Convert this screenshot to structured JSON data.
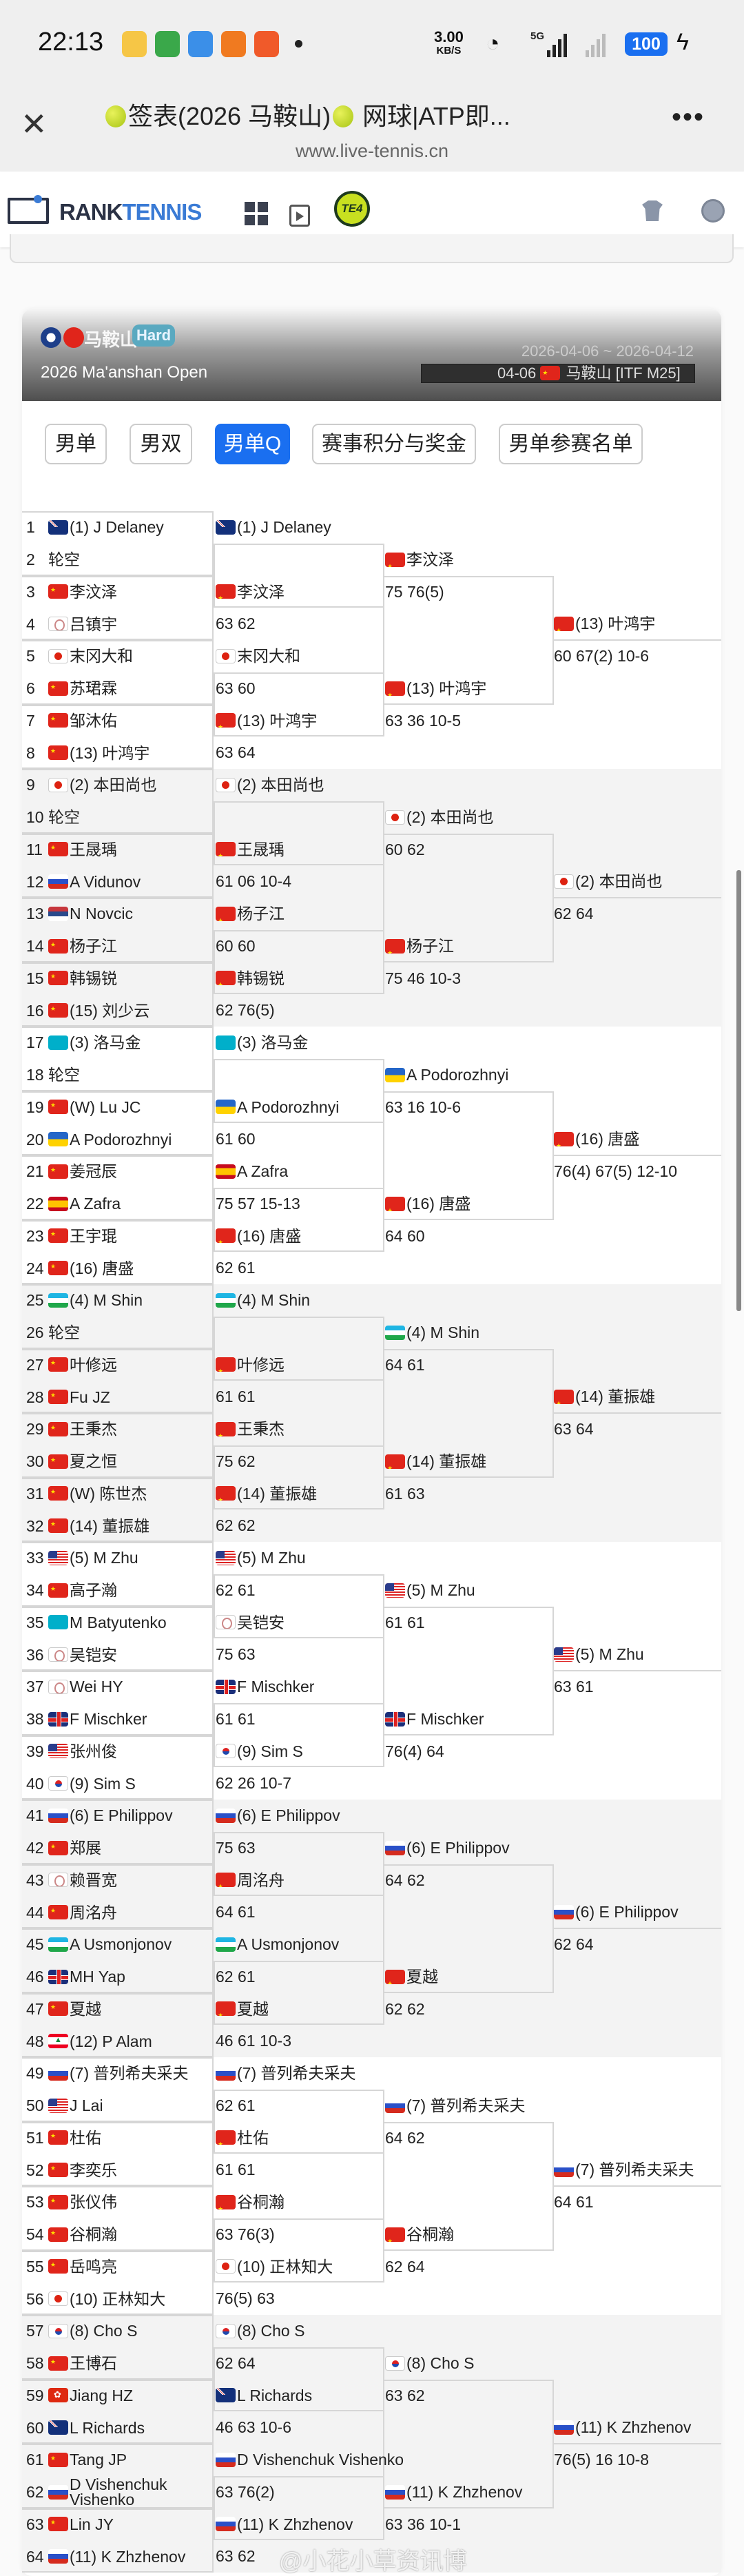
{
  "status_bar": {
    "time": "22:13",
    "speed": "3.00",
    "speed_unit": "KB/S",
    "network": "5G",
    "battery": "100"
  },
  "browser": {
    "title": "签表(2026 马鞍山)",
    "title_rest": " 网球|ATP即...",
    "url": "www.live-tennis.cn"
  },
  "site": {
    "logo_part1": "RANK",
    "logo_part2": "TENNIS",
    "te4_label": "TE4"
  },
  "tournament": {
    "city": "马鞍山",
    "surface": "Hard",
    "name": "2026 Ma'anshan Open",
    "dates": "2026-04-06 ~ 2026-04-12",
    "week": "04-06",
    "week_event": "马鞍山 [ITF M25]",
    "surface_color": "#5aa9c0"
  },
  "tabs": [
    {
      "label": "男单",
      "active": false
    },
    {
      "label": "男双",
      "active": false
    },
    {
      "label": "男单Q",
      "active": true
    },
    {
      "label": "赛事积分与奖金",
      "active": false
    },
    {
      "label": "男单参赛名单",
      "active": false
    }
  ],
  "accent_color": "#1a6ff0",
  "sections": [
    {
      "players": [
        {
          "n": "1",
          "f": "AUS",
          "name": "(1) J Delaney"
        },
        {
          "n": "2",
          "f": "",
          "name": "轮空"
        },
        {
          "n": "3",
          "f": "CHN",
          "name": "李汶泽"
        },
        {
          "n": "4",
          "f": "TPE",
          "name": "吕镇宇"
        },
        {
          "n": "5",
          "f": "JPN",
          "name": "末冈大和"
        },
        {
          "n": "6",
          "f": "CHN",
          "name": "苏珺霖"
        },
        {
          "n": "7",
          "f": "CHN",
          "name": "邹沐佑"
        },
        {
          "n": "8",
          "f": "CHN",
          "name": "(13) 叶鸿宇"
        }
      ],
      "r2": [
        {
          "f": "AUS",
          "name": "(1) J Delaney",
          "score": ""
        },
        {
          "f": "CHN",
          "name": "李汶泽",
          "score": "63 62"
        },
        {
          "f": "JPN",
          "name": "末冈大和",
          "score": "63 60"
        },
        {
          "f": "CHN",
          "name": "(13) 叶鸿宇",
          "score": "63 64"
        }
      ],
      "r3": [
        {
          "f": "CHN",
          "name": "李汶泽",
          "score": "75 76(5)"
        },
        {
          "f": "CHN",
          "name": "(13) 叶鸿宇",
          "score": "63 36 10-5"
        }
      ],
      "r4": {
        "f": "CHN",
        "name": "(13) 叶鸿宇",
        "score": "60 67(2) 10-6"
      }
    },
    {
      "players": [
        {
          "n": "9",
          "f": "JPN",
          "name": "(2) 本田尚也"
        },
        {
          "n": "10",
          "f": "",
          "name": "轮空"
        },
        {
          "n": "11",
          "f": "CHN",
          "name": "王晟瑀"
        },
        {
          "n": "12",
          "f": "RUS",
          "name": "A Vidunov"
        },
        {
          "n": "13",
          "f": "SRB",
          "name": "N Novcic"
        },
        {
          "n": "14",
          "f": "CHN",
          "name": "杨子江"
        },
        {
          "n": "15",
          "f": "CHN",
          "name": "韩锡锐"
        },
        {
          "n": "16",
          "f": "CHN",
          "name": "(15) 刘少云"
        }
      ],
      "r2": [
        {
          "f": "JPN",
          "name": "(2) 本田尚也",
          "score": ""
        },
        {
          "f": "CHN",
          "name": "王晟瑀",
          "score": "61 06 10-4"
        },
        {
          "f": "CHN",
          "name": "杨子江",
          "score": "60 60"
        },
        {
          "f": "CHN",
          "name": "韩锡锐",
          "score": "62 76(5)"
        }
      ],
      "r3": [
        {
          "f": "JPN",
          "name": "(2) 本田尚也",
          "score": "60 62"
        },
        {
          "f": "CHN",
          "name": "杨子江",
          "score": "75 46 10-3"
        }
      ],
      "r4": {
        "f": "JPN",
        "name": "(2) 本田尚也",
        "score": "62 64"
      }
    },
    {
      "players": [
        {
          "n": "17",
          "f": "KAZ",
          "name": "(3) 洛马金"
        },
        {
          "n": "18",
          "f": "",
          "name": "轮空"
        },
        {
          "n": "19",
          "f": "CHN",
          "name": "(W) Lu JC"
        },
        {
          "n": "20",
          "f": "UKR",
          "name": "A Podorozhnyi"
        },
        {
          "n": "21",
          "f": "CHN",
          "name": "姜冠辰"
        },
        {
          "n": "22",
          "f": "ESP",
          "name": "A Zafra"
        },
        {
          "n": "23",
          "f": "CHN",
          "name": "王宇琨"
        },
        {
          "n": "24",
          "f": "CHN",
          "name": "(16) 唐盛"
        }
      ],
      "r2": [
        {
          "f": "KAZ",
          "name": "(3) 洛马金",
          "score": ""
        },
        {
          "f": "UKR",
          "name": "A Podorozhnyi",
          "score": "61 60"
        },
        {
          "f": "ESP",
          "name": "A Zafra",
          "score": "75 57 15-13"
        },
        {
          "f": "CHN",
          "name": "(16) 唐盛",
          "score": "62 61"
        }
      ],
      "r3": [
        {
          "f": "UKR",
          "name": "A Podorozhnyi",
          "score": "63 16 10-6"
        },
        {
          "f": "CHN",
          "name": "(16) 唐盛",
          "score": "64 60"
        }
      ],
      "r4": {
        "f": "CHN",
        "name": "(16) 唐盛",
        "score": "76(4) 67(5) 12-10"
      }
    },
    {
      "players": [
        {
          "n": "25",
          "f": "UZB",
          "name": "(4) M Shin"
        },
        {
          "n": "26",
          "f": "",
          "name": "轮空"
        },
        {
          "n": "27",
          "f": "CHN",
          "name": "叶修远"
        },
        {
          "n": "28",
          "f": "CHN",
          "name": "Fu JZ"
        },
        {
          "n": "29",
          "f": "CHN",
          "name": "王秉杰"
        },
        {
          "n": "30",
          "f": "CHN",
          "name": "夏之恒"
        },
        {
          "n": "31",
          "f": "CHN",
          "name": "(W) 陈世杰"
        },
        {
          "n": "32",
          "f": "CHN",
          "name": "(14) 董振雄"
        }
      ],
      "r2": [
        {
          "f": "UZB",
          "name": "(4) M Shin",
          "score": ""
        },
        {
          "f": "CHN",
          "name": "叶修远",
          "score": "61 61"
        },
        {
          "f": "CHN",
          "name": "王秉杰",
          "score": "75 62"
        },
        {
          "f": "CHN",
          "name": "(14) 董振雄",
          "score": "62 62"
        }
      ],
      "r3": [
        {
          "f": "UZB",
          "name": "(4) M Shin",
          "score": "64 61"
        },
        {
          "f": "CHN",
          "name": "(14) 董振雄",
          "score": "61 63"
        }
      ],
      "r4": {
        "f": "CHN",
        "name": "(14) 董振雄",
        "score": "63 64"
      }
    },
    {
      "players": [
        {
          "n": "33",
          "f": "USA",
          "name": "(5) M Zhu"
        },
        {
          "n": "34",
          "f": "CHN",
          "name": "高子瀚"
        },
        {
          "n": "35",
          "f": "KAZ",
          "name": "M Batyutenko"
        },
        {
          "n": "36",
          "f": "TPE",
          "name": "吴铠安"
        },
        {
          "n": "37",
          "f": "TPE",
          "name": "Wei HY"
        },
        {
          "n": "38",
          "f": "GBR",
          "name": "F Mischker"
        },
        {
          "n": "39",
          "f": "USA",
          "name": "张州俊"
        },
        {
          "n": "40",
          "f": "KOR",
          "name": "(9) Sim S"
        }
      ],
      "r2": [
        {
          "f": "USA",
          "name": "(5) M Zhu",
          "score": "62 61"
        },
        {
          "f": "TPE",
          "name": "吴铠安",
          "score": "75 63"
        },
        {
          "f": "GBR",
          "name": "F Mischker",
          "score": "61 61"
        },
        {
          "f": "KOR",
          "name": "(9) Sim S",
          "score": "62 26 10-7"
        }
      ],
      "r3": [
        {
          "f": "USA",
          "name": "(5) M Zhu",
          "score": "61 61"
        },
        {
          "f": "GBR",
          "name": "F Mischker",
          "score": "76(4) 64"
        }
      ],
      "r4": {
        "f": "USA",
        "name": "(5) M Zhu",
        "score": "63 61"
      }
    },
    {
      "players": [
        {
          "n": "41",
          "f": "RUS",
          "name": "(6) E Philippov"
        },
        {
          "n": "42",
          "f": "CHN",
          "name": "郑展"
        },
        {
          "n": "43",
          "f": "TPE",
          "name": "赖晋宽"
        },
        {
          "n": "44",
          "f": "CHN",
          "name": "周洺舟"
        },
        {
          "n": "45",
          "f": "UZB",
          "name": "A Usmonjonov"
        },
        {
          "n": "46",
          "f": "GBR",
          "name": "MH Yap"
        },
        {
          "n": "47",
          "f": "CHN",
          "name": "夏越"
        },
        {
          "n": "48",
          "f": "LBN",
          "name": "(12) P Alam"
        }
      ],
      "r2": [
        {
          "f": "RUS",
          "name": "(6) E Philippov",
          "score": "75 63"
        },
        {
          "f": "CHN",
          "name": "周洺舟",
          "score": "64 61"
        },
        {
          "f": "UZB",
          "name": "A Usmonjonov",
          "score": "62 61"
        },
        {
          "f": "CHN",
          "name": "夏越",
          "score": "46 61 10-3"
        }
      ],
      "r3": [
        {
          "f": "RUS",
          "name": "(6) E Philippov",
          "score": "64 62"
        },
        {
          "f": "CHN",
          "name": "夏越",
          "score": "62 62"
        }
      ],
      "r4": {
        "f": "RUS",
        "name": "(6) E Philippov",
        "score": "62 64"
      }
    },
    {
      "players": [
        {
          "n": "49",
          "f": "RUS",
          "name": "(7) 普列希夫采夫"
        },
        {
          "n": "50",
          "f": "USA",
          "name": "J Lai"
        },
        {
          "n": "51",
          "f": "CHN",
          "name": "杜佑"
        },
        {
          "n": "52",
          "f": "CHN",
          "name": "李奕乐"
        },
        {
          "n": "53",
          "f": "CHN",
          "name": "张仪伟"
        },
        {
          "n": "54",
          "f": "CHN",
          "name": "谷桐瀚"
        },
        {
          "n": "55",
          "f": "CHN",
          "name": "岳鸣亮"
        },
        {
          "n": "56",
          "f": "JPN",
          "name": "(10) 正林知大"
        }
      ],
      "r2": [
        {
          "f": "RUS",
          "name": "(7) 普列希夫采夫",
          "score": "62 61"
        },
        {
          "f": "CHN",
          "name": "杜佑",
          "score": "61 61"
        },
        {
          "f": "CHN",
          "name": "谷桐瀚",
          "score": "63 76(3)"
        },
        {
          "f": "JPN",
          "name": "(10) 正林知大",
          "score": "76(5) 63"
        }
      ],
      "r3": [
        {
          "f": "RUS",
          "name": "(7) 普列希夫采夫",
          "score": "64 62"
        },
        {
          "f": "CHN",
          "name": "谷桐瀚",
          "score": "62 64"
        }
      ],
      "r4": {
        "f": "RUS",
        "name": "(7) 普列希夫采夫",
        "score": "64 61"
      }
    },
    {
      "players": [
        {
          "n": "57",
          "f": "KOR",
          "name": "(8) Cho S"
        },
        {
          "n": "58",
          "f": "CHN",
          "name": "王博石"
        },
        {
          "n": "59",
          "f": "HKG",
          "name": "Jiang HZ"
        },
        {
          "n": "60",
          "f": "AUS",
          "name": "L Richards"
        },
        {
          "n": "61",
          "f": "CHN",
          "name": "Tang JP"
        },
        {
          "n": "62",
          "f": "RUS",
          "name": "D Vishenchuk Vishenko"
        },
        {
          "n": "63",
          "f": "CHN",
          "name": "Lin JY"
        },
        {
          "n": "64",
          "f": "RUS",
          "name": "(11) K Zhzhenov"
        }
      ],
      "r2": [
        {
          "f": "KOR",
          "name": "(8) Cho S",
          "score": "62 64"
        },
        {
          "f": "AUS",
          "name": "L Richards",
          "score": "46 63 10-6"
        },
        {
          "f": "RUS",
          "name": "D Vishenchuk Vishenko",
          "score": "63 76(2)"
        },
        {
          "f": "RUS",
          "name": "(11) K Zhzhenov",
          "score": "63 62"
        }
      ],
      "r3": [
        {
          "f": "KOR",
          "name": "(8) Cho S",
          "score": "63 62"
        },
        {
          "f": "RUS",
          "name": "(11) K Zhzhenov",
          "score": "63 36 10-1"
        }
      ],
      "r4": {
        "f": "RUS",
        "name": "(11) K Zhzhenov",
        "score": "76(5) 16 10-8"
      }
    }
  ],
  "watermark": "@小花小草资讯博"
}
